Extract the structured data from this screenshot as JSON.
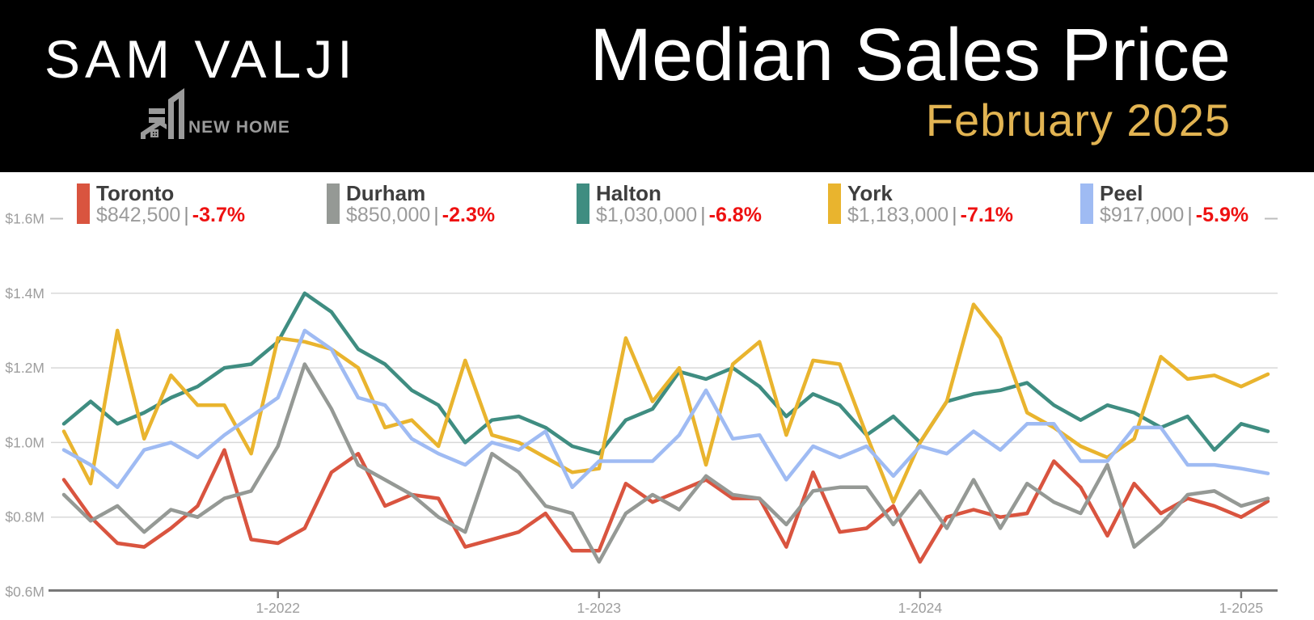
{
  "header": {
    "brand": "SAM VALJI",
    "logo_text": "NEW HOME",
    "title": "Median Sales Price",
    "subtitle": "February 2025",
    "header_bg": "#000000",
    "subtitle_color": "#e2b452"
  },
  "legend": {
    "items": [
      {
        "name": "Toronto",
        "value": "$842,500",
        "separator": "|",
        "change": "-3.7%",
        "color": "#d9543f"
      },
      {
        "name": "Durham",
        "value": "$850,000",
        "separator": "|",
        "change": "-2.3%",
        "color": "#959995"
      },
      {
        "name": "Halton",
        "value": "$1,030,000",
        "separator": "|",
        "change": "-6.8%",
        "color": "#3f8d81"
      },
      {
        "name": "York",
        "value": "$1,183,000",
        "separator": "|",
        "change": "-7.1%",
        "color": "#e9b42e"
      },
      {
        "name": "Peel",
        "value": "$917,000",
        "separator": "|",
        "change": "-5.9%",
        "color": "#9fbbf3"
      }
    ],
    "change_color": "#ee1111"
  },
  "chart_data": {
    "type": "line",
    "title": "Median Sales Price",
    "subtitle": "February 2025",
    "ylim": [
      0.6,
      1.6
    ],
    "grid": true,
    "legend_position": "top",
    "units": "millions of dollars",
    "x": [
      "5-2021",
      "6-2021",
      "7-2021",
      "8-2021",
      "9-2021",
      "10-2021",
      "11-2021",
      "12-2021",
      "1-2022",
      "2-2022",
      "3-2022",
      "4-2022",
      "5-2022",
      "6-2022",
      "7-2022",
      "8-2022",
      "9-2022",
      "10-2022",
      "11-2022",
      "12-2022",
      "1-2023",
      "2-2023",
      "3-2023",
      "4-2023",
      "5-2023",
      "6-2023",
      "7-2023",
      "8-2023",
      "9-2023",
      "10-2023",
      "11-2023",
      "12-2023",
      "1-2024",
      "2-2024",
      "3-2024",
      "4-2024",
      "5-2024",
      "6-2024",
      "7-2024",
      "8-2024",
      "9-2024",
      "10-2024",
      "11-2024",
      "12-2024",
      "1-2025",
      "2-2025"
    ],
    "xticks": [
      {
        "index": 8,
        "label": "1-2022"
      },
      {
        "index": 20,
        "label": "1-2023"
      },
      {
        "index": 32,
        "label": "1-2024"
      },
      {
        "index": 44,
        "label": "1-2025"
      }
    ],
    "yticks": [
      {
        "value": 1.6,
        "label": "$1.6M",
        "style": "stub"
      },
      {
        "value": 1.4,
        "label": "$1.4M",
        "style": "grid"
      },
      {
        "value": 1.2,
        "label": "$1.2M",
        "style": "grid"
      },
      {
        "value": 1.0,
        "label": "$1.0M",
        "style": "grid"
      },
      {
        "value": 0.8,
        "label": "$0.8M",
        "style": "grid"
      },
      {
        "value": 0.6,
        "label": "$0.6M",
        "style": "axis"
      }
    ],
    "series": [
      {
        "name": "Toronto",
        "color": "#d9543f",
        "values": [
          0.9,
          0.8,
          0.73,
          0.72,
          0.77,
          0.83,
          0.98,
          0.74,
          0.73,
          0.77,
          0.92,
          0.97,
          0.83,
          0.86,
          0.85,
          0.72,
          0.74,
          0.76,
          0.81,
          0.71,
          0.71,
          0.89,
          0.84,
          0.87,
          0.9,
          0.85,
          0.85,
          0.72,
          0.92,
          0.76,
          0.77,
          0.83,
          0.68,
          0.8,
          0.82,
          0.8,
          0.81,
          0.95,
          0.88,
          0.75,
          0.89,
          0.81,
          0.85,
          0.83,
          0.8,
          0.8425
        ]
      },
      {
        "name": "Durham",
        "color": "#959995",
        "values": [
          0.86,
          0.79,
          0.83,
          0.76,
          0.82,
          0.8,
          0.85,
          0.87,
          0.99,
          1.21,
          1.09,
          0.94,
          0.9,
          0.86,
          0.8,
          0.76,
          0.97,
          0.92,
          0.83,
          0.81,
          0.68,
          0.81,
          0.86,
          0.82,
          0.91,
          0.86,
          0.85,
          0.78,
          0.87,
          0.88,
          0.88,
          0.78,
          0.87,
          0.77,
          0.9,
          0.77,
          0.89,
          0.84,
          0.81,
          0.94,
          0.72,
          0.78,
          0.86,
          0.87,
          0.83,
          0.85
        ]
      },
      {
        "name": "Halton",
        "color": "#3f8d81",
        "values": [
          1.05,
          1.11,
          1.05,
          1.08,
          1.12,
          1.15,
          1.2,
          1.21,
          1.27,
          1.4,
          1.35,
          1.25,
          1.21,
          1.14,
          1.1,
          1.0,
          1.06,
          1.07,
          1.04,
          0.99,
          0.97,
          1.06,
          1.09,
          1.19,
          1.17,
          1.2,
          1.15,
          1.07,
          1.13,
          1.1,
          1.02,
          1.07,
          1.0,
          1.11,
          1.13,
          1.14,
          1.16,
          1.1,
          1.06,
          1.1,
          1.08,
          1.04,
          1.07,
          0.98,
          1.05,
          1.03
        ]
      },
      {
        "name": "York",
        "color": "#e9b42e",
        "values": [
          1.03,
          0.89,
          1.3,
          1.01,
          1.18,
          1.1,
          1.1,
          0.97,
          1.28,
          1.27,
          1.25,
          1.2,
          1.04,
          1.06,
          0.99,
          1.22,
          1.02,
          1.0,
          0.96,
          0.92,
          0.93,
          1.28,
          1.11,
          1.2,
          0.94,
          1.21,
          1.27,
          1.02,
          1.22,
          1.21,
          1.02,
          0.84,
          1.0,
          1.11,
          1.37,
          1.28,
          1.08,
          1.04,
          0.99,
          0.96,
          1.01,
          1.23,
          1.17,
          1.18,
          1.15,
          1.183
        ]
      },
      {
        "name": "Peel",
        "color": "#9fbbf3",
        "values": [
          0.98,
          0.94,
          0.88,
          0.98,
          1.0,
          0.96,
          1.02,
          1.07,
          1.12,
          1.3,
          1.25,
          1.12,
          1.1,
          1.01,
          0.97,
          0.94,
          1.0,
          0.98,
          1.03,
          0.88,
          0.95,
          0.95,
          0.95,
          1.02,
          1.14,
          1.01,
          1.02,
          0.9,
          0.99,
          0.96,
          0.99,
          0.91,
          0.99,
          0.97,
          1.03,
          0.98,
          1.05,
          1.05,
          0.95,
          0.95,
          1.04,
          1.04,
          0.94,
          0.94,
          0.93,
          0.917
        ]
      }
    ],
    "style": {
      "grid_color": "#d8d8d8",
      "axis_color": "#787878",
      "tick_label_color": "#9e9e9e",
      "line_width": 4.5
    }
  }
}
